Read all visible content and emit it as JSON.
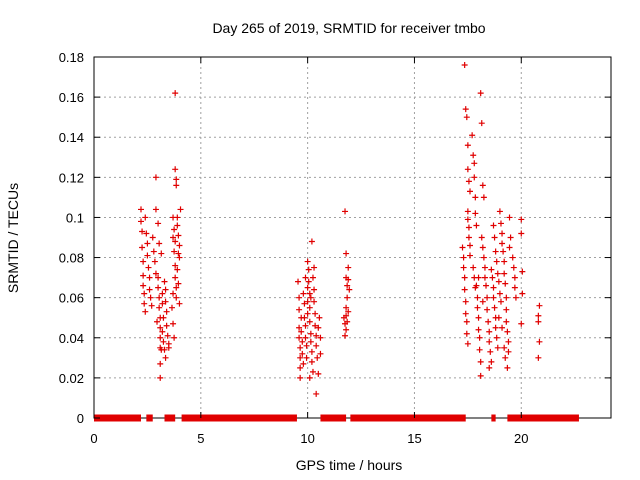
{
  "chart_data": {
    "type": "scatter",
    "title": "Day 265 of 2019, SRMTID for receiver tmbo",
    "xlabel": "GPS time / hours",
    "ylabel": "SRMTID / TECUs",
    "xlim": [
      0,
      24.2
    ],
    "ylim": [
      0,
      0.18
    ],
    "xticks": [
      0,
      5,
      10,
      15,
      20
    ],
    "xtick_labels": [
      "0",
      "5",
      "10",
      "15",
      "20"
    ],
    "yticks": [
      0,
      0.02,
      0.04,
      0.06,
      0.08,
      0.1,
      0.12,
      0.14,
      0.16,
      0.18
    ],
    "ytick_labels": [
      "0",
      "0.02",
      "0.04",
      "0.06",
      "0.08",
      "0.1",
      "0.12",
      "0.14",
      "0.16",
      "0.18"
    ],
    "grid": true,
    "marker": "+",
    "color": "#e00000",
    "zero_segments": [
      [
        0.0,
        2.2
      ],
      [
        2.45,
        2.75
      ],
      [
        3.3,
        3.8
      ],
      [
        4.1,
        9.5
      ],
      [
        10.6,
        11.8
      ],
      [
        12.0,
        17.4
      ],
      [
        18.6,
        18.8
      ],
      [
        19.35,
        22.7
      ]
    ],
    "series": [
      {
        "name": "SRMTID",
        "points": [
          [
            2.2,
            0.104
          ],
          [
            2.2,
            0.098
          ],
          [
            2.25,
            0.093
          ],
          [
            2.25,
            0.085
          ],
          [
            2.3,
            0.078
          ],
          [
            2.3,
            0.071
          ],
          [
            2.3,
            0.066
          ],
          [
            2.35,
            0.062
          ],
          [
            2.35,
            0.057
          ],
          [
            2.4,
            0.053
          ],
          [
            2.4,
            0.1
          ],
          [
            2.45,
            0.092
          ],
          [
            2.5,
            0.087
          ],
          [
            2.5,
            0.081
          ],
          [
            2.55,
            0.075
          ],
          [
            2.6,
            0.07
          ],
          [
            2.6,
            0.064
          ],
          [
            2.65,
            0.06
          ],
          [
            2.7,
            0.056
          ],
          [
            2.75,
            0.09
          ],
          [
            2.8,
            0.083
          ],
          [
            2.85,
            0.078
          ],
          [
            2.9,
            0.072
          ],
          [
            2.9,
            0.12
          ],
          [
            2.9,
            0.104
          ],
          [
            3.0,
            0.097
          ],
          [
            3.0,
            0.07
          ],
          [
            3.0,
            0.065
          ],
          [
            3.05,
            0.06
          ],
          [
            3.05,
            0.055
          ],
          [
            3.1,
            0.05
          ],
          [
            3.1,
            0.045
          ],
          [
            3.1,
            0.04
          ],
          [
            3.1,
            0.035
          ],
          [
            3.1,
            0.027
          ],
          [
            3.1,
            0.02
          ],
          [
            3.15,
            0.034
          ],
          [
            3.2,
            0.062
          ],
          [
            3.2,
            0.057
          ],
          [
            3.2,
            0.043
          ],
          [
            3.25,
            0.038
          ],
          [
            3.3,
            0.034
          ],
          [
            3.3,
            0.068
          ],
          [
            3.35,
            0.064
          ],
          [
            3.35,
            0.058
          ],
          [
            3.4,
            0.053
          ],
          [
            3.4,
            0.046
          ],
          [
            3.45,
            0.041
          ],
          [
            3.5,
            0.037
          ],
          [
            3.5,
            0.035
          ],
          [
            2.95,
            0.048
          ],
          [
            3.05,
            0.087
          ],
          [
            3.15,
            0.082
          ],
          [
            3.25,
            0.05
          ],
          [
            3.35,
            0.03
          ],
          [
            3.7,
            0.09
          ],
          [
            3.75,
            0.083
          ],
          [
            3.8,
            0.076
          ],
          [
            3.8,
            0.07
          ],
          [
            3.85,
            0.065
          ],
          [
            3.85,
            0.06
          ],
          [
            3.7,
            0.047
          ],
          [
            3.75,
            0.04
          ],
          [
            3.8,
            0.162
          ],
          [
            3.8,
            0.124
          ],
          [
            3.85,
            0.119
          ],
          [
            3.85,
            0.116
          ],
          [
            3.9,
            0.1
          ],
          [
            3.9,
            0.096
          ],
          [
            3.95,
            0.091
          ],
          [
            4.0,
            0.086
          ],
          [
            4.0,
            0.08
          ],
          [
            4.05,
            0.104
          ],
          [
            4.0,
            0.057
          ],
          [
            3.9,
            0.074
          ],
          [
            3.95,
            0.067
          ],
          [
            3.7,
            0.1
          ],
          [
            3.75,
            0.094
          ],
          [
            3.8,
            0.088
          ],
          [
            3.95,
            0.082
          ],
          [
            3.65,
            0.055
          ],
          [
            3.7,
            0.062
          ],
          [
            9.55,
            0.068
          ],
          [
            9.6,
            0.06
          ],
          [
            9.6,
            0.054
          ],
          [
            9.6,
            0.045
          ],
          [
            9.6,
            0.04
          ],
          [
            9.65,
            0.035
          ],
          [
            9.65,
            0.03
          ],
          [
            9.65,
            0.025
          ],
          [
            9.65,
            0.02
          ],
          [
            9.7,
            0.05
          ],
          [
            9.7,
            0.043
          ],
          [
            9.75,
            0.038
          ],
          [
            9.75,
            0.032
          ],
          [
            9.8,
            0.027
          ],
          [
            9.8,
            0.062
          ],
          [
            9.85,
            0.057
          ],
          [
            9.85,
            0.05
          ],
          [
            9.9,
            0.046
          ],
          [
            9.9,
            0.04
          ],
          [
            9.95,
            0.036
          ],
          [
            9.95,
            0.03
          ],
          [
            10.0,
            0.065
          ],
          [
            10.0,
            0.058
          ],
          [
            10.0,
            0.052
          ],
          [
            10.0,
            0.078
          ],
          [
            10.05,
            0.074
          ],
          [
            10.05,
            0.068
          ],
          [
            10.1,
            0.062
          ],
          [
            10.1,
            0.055
          ],
          [
            10.1,
            0.048
          ],
          [
            10.15,
            0.042
          ],
          [
            10.15,
            0.038
          ],
          [
            10.2,
            0.033
          ],
          [
            10.2,
            0.028
          ],
          [
            10.25,
            0.023
          ],
          [
            10.2,
            0.088
          ],
          [
            10.25,
            0.07
          ],
          [
            10.3,
            0.064
          ],
          [
            10.3,
            0.058
          ],
          [
            10.35,
            0.052
          ],
          [
            10.35,
            0.046
          ],
          [
            10.4,
            0.041
          ],
          [
            10.4,
            0.036
          ],
          [
            10.45,
            0.03
          ],
          [
            10.4,
            0.012
          ],
          [
            10.5,
            0.022
          ],
          [
            10.5,
            0.045
          ],
          [
            10.55,
            0.05
          ],
          [
            10.6,
            0.04
          ],
          [
            10.6,
            0.032
          ],
          [
            10.1,
            0.02
          ],
          [
            10.15,
            0.06
          ],
          [
            9.9,
            0.07
          ],
          [
            10.3,
            0.075
          ],
          [
            11.75,
            0.103
          ],
          [
            11.8,
            0.082
          ],
          [
            11.8,
            0.07
          ],
          [
            11.85,
            0.066
          ],
          [
            11.85,
            0.06
          ],
          [
            11.8,
            0.055
          ],
          [
            11.8,
            0.051
          ],
          [
            11.85,
            0.048
          ],
          [
            11.8,
            0.044
          ],
          [
            11.75,
            0.041
          ],
          [
            11.9,
            0.075
          ],
          [
            11.75,
            0.047
          ],
          [
            11.9,
            0.053
          ],
          [
            11.9,
            0.069
          ],
          [
            11.7,
            0.05
          ],
          [
            11.95,
            0.064
          ],
          [
            17.25,
            0.085
          ],
          [
            17.3,
            0.08
          ],
          [
            17.3,
            0.075
          ],
          [
            17.35,
            0.07
          ],
          [
            17.35,
            0.064
          ],
          [
            17.4,
            0.058
          ],
          [
            17.4,
            0.052
          ],
          [
            17.45,
            0.048
          ],
          [
            17.45,
            0.042
          ],
          [
            17.5,
            0.037
          ],
          [
            17.5,
            0.103
          ],
          [
            17.5,
            0.099
          ],
          [
            17.55,
            0.095
          ],
          [
            17.55,
            0.09
          ],
          [
            17.6,
            0.086
          ],
          [
            17.6,
            0.081
          ],
          [
            17.35,
            0.176
          ],
          [
            17.4,
            0.154
          ],
          [
            17.45,
            0.15
          ],
          [
            17.5,
            0.136
          ],
          [
            17.5,
            0.124
          ],
          [
            17.55,
            0.118
          ],
          [
            17.6,
            0.113
          ],
          [
            17.7,
            0.141
          ],
          [
            17.75,
            0.131
          ],
          [
            17.8,
            0.127
          ],
          [
            17.8,
            0.12
          ],
          [
            17.85,
            0.11
          ],
          [
            17.85,
            0.102
          ],
          [
            17.9,
            0.096
          ],
          [
            17.9,
            0.066
          ],
          [
            17.95,
            0.06
          ],
          [
            17.95,
            0.055
          ],
          [
            18.0,
            0.05
          ],
          [
            18.0,
            0.044
          ],
          [
            18.05,
            0.04
          ],
          [
            18.05,
            0.034
          ],
          [
            18.1,
            0.028
          ],
          [
            18.1,
            0.021
          ],
          [
            17.75,
            0.075
          ],
          [
            17.8,
            0.07
          ],
          [
            17.85,
            0.065
          ],
          [
            18.1,
            0.162
          ],
          [
            18.15,
            0.147
          ],
          [
            18.2,
            0.116
          ],
          [
            18.25,
            0.11
          ],
          [
            18.15,
            0.09
          ],
          [
            18.2,
            0.085
          ],
          [
            18.25,
            0.08
          ],
          [
            18.3,
            0.075
          ],
          [
            18.3,
            0.07
          ],
          [
            18.35,
            0.066
          ],
          [
            18.4,
            0.06
          ],
          [
            18.4,
            0.054
          ],
          [
            18.45,
            0.048
          ],
          [
            18.5,
            0.043
          ],
          [
            18.5,
            0.038
          ],
          [
            18.55,
            0.033
          ],
          [
            18.5,
            0.025
          ],
          [
            18.6,
            0.074
          ],
          [
            18.65,
            0.07
          ],
          [
            18.7,
            0.065
          ],
          [
            18.7,
            0.06
          ],
          [
            18.75,
            0.055
          ],
          [
            18.8,
            0.05
          ],
          [
            18.8,
            0.045
          ],
          [
            18.85,
            0.04
          ],
          [
            18.9,
            0.035
          ],
          [
            18.7,
            0.096
          ],
          [
            18.75,
            0.09
          ],
          [
            18.8,
            0.083
          ],
          [
            18.85,
            0.078
          ],
          [
            18.9,
            0.072
          ],
          [
            18.95,
            0.068
          ],
          [
            19.0,
            0.062
          ],
          [
            19.05,
            0.058
          ],
          [
            19.0,
            0.103
          ],
          [
            19.05,
            0.097
          ],
          [
            19.1,
            0.092
          ],
          [
            19.1,
            0.087
          ],
          [
            19.15,
            0.083
          ],
          [
            19.2,
            0.078
          ],
          [
            19.2,
            0.072
          ],
          [
            19.25,
            0.067
          ],
          [
            19.3,
            0.06
          ],
          [
            19.3,
            0.054
          ],
          [
            19.3,
            0.048
          ],
          [
            19.35,
            0.043
          ],
          [
            19.4,
            0.038
          ],
          [
            19.4,
            0.033
          ],
          [
            19.35,
            0.025
          ],
          [
            19.45,
            0.1
          ],
          [
            19.5,
            0.09
          ],
          [
            19.45,
            0.085
          ],
          [
            19.6,
            0.08
          ],
          [
            19.65,
            0.075
          ],
          [
            19.7,
            0.07
          ],
          [
            19.7,
            0.065
          ],
          [
            19.75,
            0.06
          ],
          [
            19.2,
            0.035
          ],
          [
            19.25,
            0.03
          ],
          [
            19.1,
            0.045
          ],
          [
            18.95,
            0.05
          ],
          [
            18.6,
            0.028
          ],
          [
            18.0,
            0.07
          ],
          [
            18.2,
            0.058
          ],
          [
            20.0,
            0.099
          ],
          [
            20.0,
            0.092
          ],
          [
            20.05,
            0.073
          ],
          [
            20.05,
            0.062
          ],
          [
            20.0,
            0.047
          ],
          [
            20.85,
            0.056
          ],
          [
            20.8,
            0.051
          ],
          [
            20.8,
            0.048
          ],
          [
            20.85,
            0.038
          ],
          [
            20.8,
            0.03
          ]
        ]
      }
    ]
  }
}
